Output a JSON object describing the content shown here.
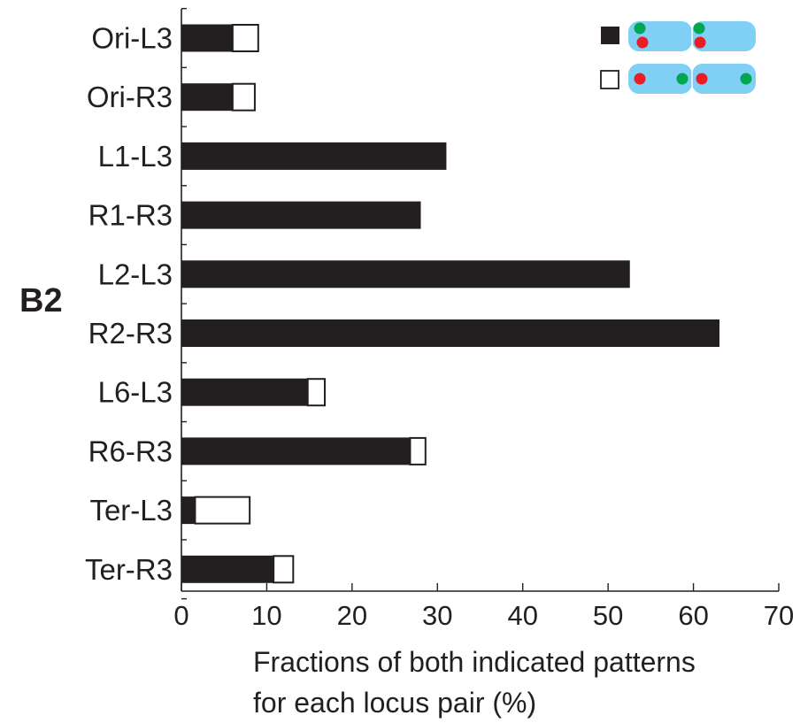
{
  "panel_label": "B2",
  "chart_data": {
    "type": "bar",
    "orientation": "horizontal",
    "stacked": true,
    "categories": [
      "Ori-L3",
      "Ori-R3",
      "L1-L3",
      "R1-R3",
      "L2-L3",
      "R2-R3",
      "L6-L3",
      "R6-R3",
      "Ter-L3",
      "Ter-R3"
    ],
    "series": [
      {
        "values": [
          6.0,
          6.0,
          31.0,
          28.0,
          52.5,
          63.0,
          14.8,
          26.8,
          1.6,
          10.8
        ]
      },
      {
        "values": [
          3.0,
          2.6,
          0,
          0,
          0,
          0,
          2.0,
          1.8,
          6.4,
          2.3
        ]
      }
    ],
    "xlabel_lines": [
      "Fractions of both indicated patterns",
      "for each locus pair (%)"
    ],
    "xlim": [
      0,
      70
    ],
    "xticks": [
      "0",
      "10",
      "20",
      "30",
      "40",
      "50",
      "60",
      "70"
    ],
    "grid": false,
    "legend": {
      "position": "top-right",
      "entries": [
        {
          "swatch": "filled",
          "color": "#231f20"
        },
        {
          "swatch": "open",
          "color": "#ffffff"
        }
      ]
    },
    "colors": {
      "bar_fill": "#231f20",
      "bar_open": "#ffffff",
      "cell": "#7fd0f4",
      "red_dot": "#ec1c24",
      "green_dot": "#00a651"
    }
  }
}
